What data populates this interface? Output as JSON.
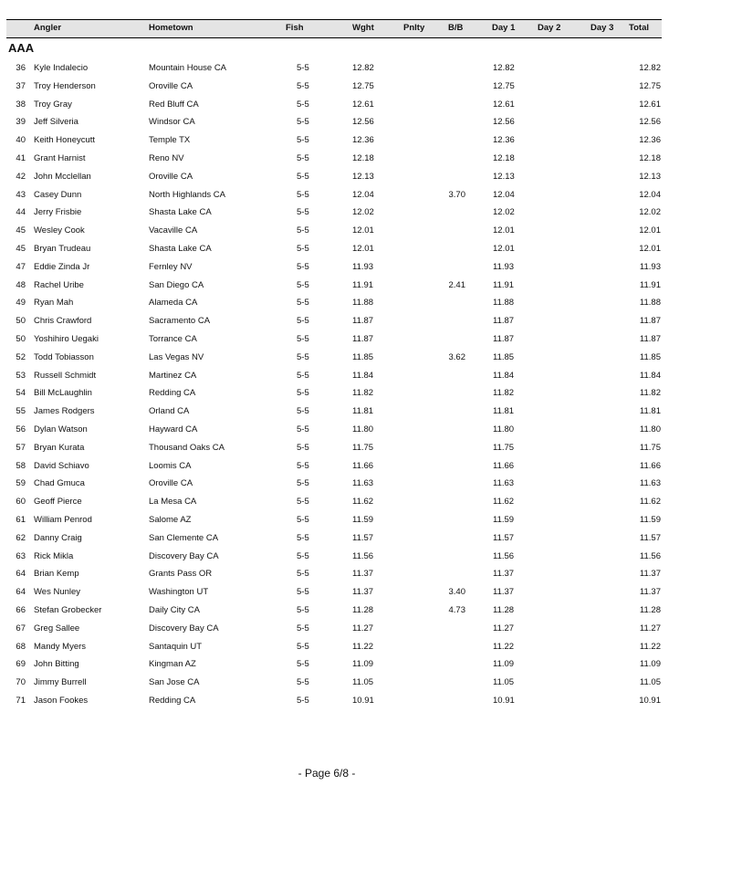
{
  "header": {
    "angler": "Angler",
    "hometown": "Hometown",
    "fish": "Fish",
    "wght": "Wght",
    "pnlty": "Pnlty",
    "bb": "B/B",
    "day1": "Day 1",
    "day2": "Day 2",
    "day3": "Day 3",
    "total": "Total"
  },
  "division": "AAA",
  "rows": [
    {
      "rank": "36",
      "angler": "Kyle Indalecio",
      "hometown": "Mountain House CA",
      "fish": "5-5",
      "wght": "12.82",
      "pnlty": "",
      "bb": "",
      "day1": "12.82",
      "day2": "",
      "day3": "",
      "total": "12.82"
    },
    {
      "rank": "37",
      "angler": "Troy Henderson",
      "hometown": "Oroville CA",
      "fish": "5-5",
      "wght": "12.75",
      "pnlty": "",
      "bb": "",
      "day1": "12.75",
      "day2": "",
      "day3": "",
      "total": "12.75"
    },
    {
      "rank": "38",
      "angler": "Troy Gray",
      "hometown": "Red Bluff CA",
      "fish": "5-5",
      "wght": "12.61",
      "pnlty": "",
      "bb": "",
      "day1": "12.61",
      "day2": "",
      "day3": "",
      "total": "12.61"
    },
    {
      "rank": "39",
      "angler": "Jeff Silveria",
      "hometown": "Windsor CA",
      "fish": "5-5",
      "wght": "12.56",
      "pnlty": "",
      "bb": "",
      "day1": "12.56",
      "day2": "",
      "day3": "",
      "total": "12.56"
    },
    {
      "rank": "40",
      "angler": "Keith Honeycutt",
      "hometown": "Temple TX",
      "fish": "5-5",
      "wght": "12.36",
      "pnlty": "",
      "bb": "",
      "day1": "12.36",
      "day2": "",
      "day3": "",
      "total": "12.36"
    },
    {
      "rank": "41",
      "angler": "Grant Harnist",
      "hometown": "Reno NV",
      "fish": "5-5",
      "wght": "12.18",
      "pnlty": "",
      "bb": "",
      "day1": "12.18",
      "day2": "",
      "day3": "",
      "total": "12.18"
    },
    {
      "rank": "42",
      "angler": "John Mcclellan",
      "hometown": "Oroville CA",
      "fish": "5-5",
      "wght": "12.13",
      "pnlty": "",
      "bb": "",
      "day1": "12.13",
      "day2": "",
      "day3": "",
      "total": "12.13"
    },
    {
      "rank": "43",
      "angler": "Casey Dunn",
      "hometown": "North Highlands CA",
      "fish": "5-5",
      "wght": "12.04",
      "pnlty": "",
      "bb": "3.70",
      "day1": "12.04",
      "day2": "",
      "day3": "",
      "total": "12.04"
    },
    {
      "rank": "44",
      "angler": "Jerry Frisbie",
      "hometown": "Shasta Lake CA",
      "fish": "5-5",
      "wght": "12.02",
      "pnlty": "",
      "bb": "",
      "day1": "12.02",
      "day2": "",
      "day3": "",
      "total": "12.02"
    },
    {
      "rank": "45",
      "angler": "Wesley Cook",
      "hometown": "Vacaville CA",
      "fish": "5-5",
      "wght": "12.01",
      "pnlty": "",
      "bb": "",
      "day1": "12.01",
      "day2": "",
      "day3": "",
      "total": "12.01"
    },
    {
      "rank": "45",
      "angler": "Bryan Trudeau",
      "hometown": "Shasta Lake CA",
      "fish": "5-5",
      "wght": "12.01",
      "pnlty": "",
      "bb": "",
      "day1": "12.01",
      "day2": "",
      "day3": "",
      "total": "12.01"
    },
    {
      "rank": "47",
      "angler": "Eddie Zinda Jr",
      "hometown": "Fernley NV",
      "fish": "5-5",
      "wght": "11.93",
      "pnlty": "",
      "bb": "",
      "day1": "11.93",
      "day2": "",
      "day3": "",
      "total": "11.93"
    },
    {
      "rank": "48",
      "angler": "Rachel Uribe",
      "hometown": "San Diego CA",
      "fish": "5-5",
      "wght": "11.91",
      "pnlty": "",
      "bb": "2.41",
      "day1": "11.91",
      "day2": "",
      "day3": "",
      "total": "11.91"
    },
    {
      "rank": "49",
      "angler": "Ryan Mah",
      "hometown": "Alameda CA",
      "fish": "5-5",
      "wght": "11.88",
      "pnlty": "",
      "bb": "",
      "day1": "11.88",
      "day2": "",
      "day3": "",
      "total": "11.88"
    },
    {
      "rank": "50",
      "angler": "Chris Crawford",
      "hometown": "Sacramento CA",
      "fish": "5-5",
      "wght": "11.87",
      "pnlty": "",
      "bb": "",
      "day1": "11.87",
      "day2": "",
      "day3": "",
      "total": "11.87"
    },
    {
      "rank": "50",
      "angler": "Yoshihiro Uegaki",
      "hometown": "Torrance CA",
      "fish": "5-5",
      "wght": "11.87",
      "pnlty": "",
      "bb": "",
      "day1": "11.87",
      "day2": "",
      "day3": "",
      "total": "11.87"
    },
    {
      "rank": "52",
      "angler": "Todd Tobiasson",
      "hometown": "Las Vegas NV",
      "fish": "5-5",
      "wght": "11.85",
      "pnlty": "",
      "bb": "3.62",
      "day1": "11.85",
      "day2": "",
      "day3": "",
      "total": "11.85"
    },
    {
      "rank": "53",
      "angler": "Russell Schmidt",
      "hometown": "Martinez CA",
      "fish": "5-5",
      "wght": "11.84",
      "pnlty": "",
      "bb": "",
      "day1": "11.84",
      "day2": "",
      "day3": "",
      "total": "11.84"
    },
    {
      "rank": "54",
      "angler": "Bill McLaughlin",
      "hometown": "Redding CA",
      "fish": "5-5",
      "wght": "11.82",
      "pnlty": "",
      "bb": "",
      "day1": "11.82",
      "day2": "",
      "day3": "",
      "total": "11.82"
    },
    {
      "rank": "55",
      "angler": "James Rodgers",
      "hometown": "Orland CA",
      "fish": "5-5",
      "wght": "11.81",
      "pnlty": "",
      "bb": "",
      "day1": "11.81",
      "day2": "",
      "day3": "",
      "total": "11.81"
    },
    {
      "rank": "56",
      "angler": "Dylan Watson",
      "hometown": "Hayward CA",
      "fish": "5-5",
      "wght": "11.80",
      "pnlty": "",
      "bb": "",
      "day1": "11.80",
      "day2": "",
      "day3": "",
      "total": "11.80"
    },
    {
      "rank": "57",
      "angler": "Bryan Kurata",
      "hometown": "Thousand Oaks CA",
      "fish": "5-5",
      "wght": "11.75",
      "pnlty": "",
      "bb": "",
      "day1": "11.75",
      "day2": "",
      "day3": "",
      "total": "11.75"
    },
    {
      "rank": "58",
      "angler": "David Schiavo",
      "hometown": "Loomis CA",
      "fish": "5-5",
      "wght": "11.66",
      "pnlty": "",
      "bb": "",
      "day1": "11.66",
      "day2": "",
      "day3": "",
      "total": "11.66"
    },
    {
      "rank": "59",
      "angler": "Chad Gmuca",
      "hometown": "Oroville CA",
      "fish": "5-5",
      "wght": "11.63",
      "pnlty": "",
      "bb": "",
      "day1": "11.63",
      "day2": "",
      "day3": "",
      "total": "11.63"
    },
    {
      "rank": "60",
      "angler": "Geoff Pierce",
      "hometown": "La Mesa CA",
      "fish": "5-5",
      "wght": "11.62",
      "pnlty": "",
      "bb": "",
      "day1": "11.62",
      "day2": "",
      "day3": "",
      "total": "11.62"
    },
    {
      "rank": "61",
      "angler": "William Penrod",
      "hometown": "Salome AZ",
      "fish": "5-5",
      "wght": "11.59",
      "pnlty": "",
      "bb": "",
      "day1": "11.59",
      "day2": "",
      "day3": "",
      "total": "11.59"
    },
    {
      "rank": "62",
      "angler": "Danny Craig",
      "hometown": "San Clemente CA",
      "fish": "5-5",
      "wght": "11.57",
      "pnlty": "",
      "bb": "",
      "day1": "11.57",
      "day2": "",
      "day3": "",
      "total": "11.57"
    },
    {
      "rank": "63",
      "angler": "Rick Mikla",
      "hometown": "Discovery Bay CA",
      "fish": "5-5",
      "wght": "11.56",
      "pnlty": "",
      "bb": "",
      "day1": "11.56",
      "day2": "",
      "day3": "",
      "total": "11.56"
    },
    {
      "rank": "64",
      "angler": "Brian Kemp",
      "hometown": "Grants Pass OR",
      "fish": "5-5",
      "wght": "11.37",
      "pnlty": "",
      "bb": "",
      "day1": "11.37",
      "day2": "",
      "day3": "",
      "total": "11.37"
    },
    {
      "rank": "64",
      "angler": "Wes Nunley",
      "hometown": "Washington UT",
      "fish": "5-5",
      "wght": "11.37",
      "pnlty": "",
      "bb": "3.40",
      "day1": "11.37",
      "day2": "",
      "day3": "",
      "total": "11.37"
    },
    {
      "rank": "66",
      "angler": "Stefan Grobecker",
      "hometown": "Daily City CA",
      "fish": "5-5",
      "wght": "11.28",
      "pnlty": "",
      "bb": "4.73",
      "day1": "11.28",
      "day2": "",
      "day3": "",
      "total": "11.28"
    },
    {
      "rank": "67",
      "angler": "Greg Sallee",
      "hometown": "Discovery Bay CA",
      "fish": "5-5",
      "wght": "11.27",
      "pnlty": "",
      "bb": "",
      "day1": "11.27",
      "day2": "",
      "day3": "",
      "total": "11.27"
    },
    {
      "rank": "68",
      "angler": "Mandy Myers",
      "hometown": "Santaquin UT",
      "fish": "5-5",
      "wght": "11.22",
      "pnlty": "",
      "bb": "",
      "day1": "11.22",
      "day2": "",
      "day3": "",
      "total": "11.22"
    },
    {
      "rank": "69",
      "angler": "John Bitting",
      "hometown": "Kingman AZ",
      "fish": "5-5",
      "wght": "11.09",
      "pnlty": "",
      "bb": "",
      "day1": "11.09",
      "day2": "",
      "day3": "",
      "total": "11.09"
    },
    {
      "rank": "70",
      "angler": "Jimmy Burrell",
      "hometown": "San Jose CA",
      "fish": "5-5",
      "wght": "11.05",
      "pnlty": "",
      "bb": "",
      "day1": "11.05",
      "day2": "",
      "day3": "",
      "total": "11.05"
    },
    {
      "rank": "71",
      "angler": "Jason Fookes",
      "hometown": "Redding CA",
      "fish": "5-5",
      "wght": "10.91",
      "pnlty": "",
      "bb": "",
      "day1": "10.91",
      "day2": "",
      "day3": "",
      "total": "10.91"
    }
  ],
  "footer": {
    "page": "- Page 6/8 -"
  }
}
